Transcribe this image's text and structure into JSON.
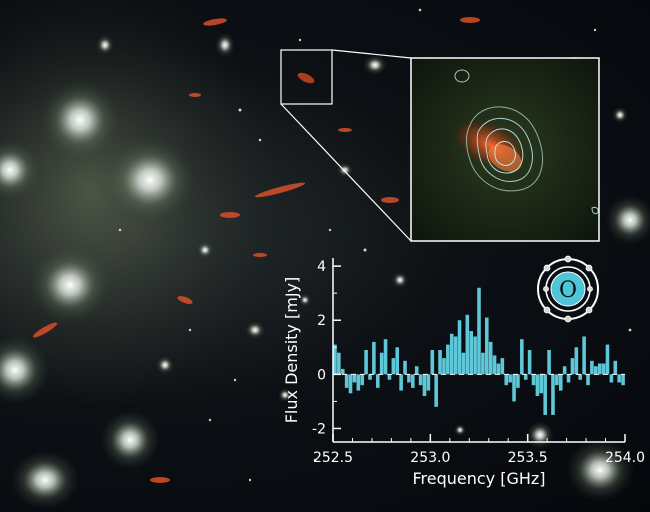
{
  "chart_data": {
    "type": "bar",
    "title": "",
    "xlabel": "Frequency [GHz]",
    "ylabel": "Flux Density [mJy]",
    "xlim": [
      252.5,
      254.0
    ],
    "ylim": [
      -2.5,
      4.3
    ],
    "x_ticks": [
      "252.5",
      "253.0",
      "253.5",
      "254.0"
    ],
    "y_ticks": [
      "-2",
      "0",
      "2",
      "4"
    ],
    "bar_color": "#5fc8d8",
    "zero_line": true,
    "grid": false,
    "x": [
      252.51,
      252.53,
      252.55,
      252.57,
      252.59,
      252.61,
      252.63,
      252.65,
      252.67,
      252.69,
      252.71,
      252.73,
      252.75,
      252.77,
      252.79,
      252.81,
      252.83,
      252.85,
      252.87,
      252.89,
      252.91,
      252.93,
      252.95,
      252.97,
      252.99,
      253.01,
      253.03,
      253.05,
      253.07,
      253.09,
      253.11,
      253.13,
      253.15,
      253.17,
      253.19,
      253.21,
      253.23,
      253.25,
      253.27,
      253.29,
      253.31,
      253.33,
      253.35,
      253.37,
      253.39,
      253.41,
      253.43,
      253.45,
      253.47,
      253.49,
      253.51,
      253.53,
      253.55,
      253.57,
      253.59,
      253.61,
      253.63,
      253.65,
      253.67,
      253.69,
      253.71,
      253.73,
      253.75,
      253.77,
      253.79,
      253.81,
      253.83,
      253.85,
      253.87,
      253.89,
      253.91,
      253.93,
      253.95,
      253.97,
      253.99
    ],
    "values": [
      1.1,
      0.8,
      0.2,
      -0.5,
      -0.7,
      -0.3,
      -0.6,
      -0.4,
      0.9,
      -0.2,
      1.2,
      -0.5,
      0.8,
      1.3,
      -0.2,
      0.6,
      1.0,
      -0.6,
      0.5,
      -0.3,
      -0.5,
      0.3,
      -0.4,
      -0.8,
      -0.6,
      0.9,
      -1.2,
      0.9,
      0.6,
      1.1,
      1.5,
      1.4,
      2.0,
      0.8,
      2.2,
      1.6,
      1.4,
      3.2,
      0.8,
      2.1,
      1.2,
      0.7,
      0.4,
      0.6,
      -0.4,
      -0.3,
      -1.0,
      -0.5,
      1.3,
      -0.2,
      0.9,
      -0.4,
      -0.8,
      -0.7,
      -1.5,
      0.9,
      -1.5,
      -0.4,
      -0.6,
      0.3,
      -0.3,
      0.6,
      1.0,
      -0.2,
      1.4,
      -0.4,
      0.5,
      0.3,
      0.4,
      0.4,
      1.1,
      -0.3,
      0.5,
      -0.3,
      -0.4
    ]
  },
  "icon": {
    "name": "oxygen-atom-icon",
    "symbol": "O",
    "fill": "#4fc6d8",
    "stroke": "#ffffff"
  }
}
